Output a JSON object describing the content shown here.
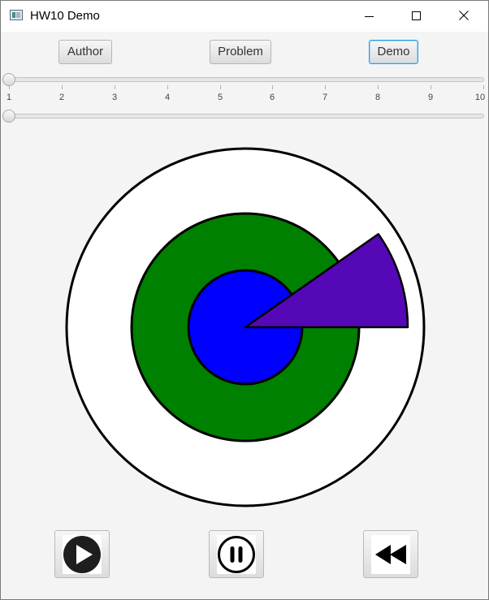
{
  "window": {
    "title": "HW10 Demo",
    "icon": "app-window-icon"
  },
  "toolbar": {
    "author_label": "Author",
    "problem_label": "Problem",
    "demo_label": "Demo",
    "focused": "Demo"
  },
  "sliders": {
    "top": {
      "min": 1,
      "max": 10,
      "value": 1,
      "ticks": [
        "1",
        "2",
        "3",
        "4",
        "5",
        "6",
        "7",
        "8",
        "9",
        "10"
      ]
    },
    "bottom": {
      "value": 0
    }
  },
  "drawing": {
    "colors": {
      "outer_ring": "#ffffff",
      "middle_ring": "#008000",
      "inner_circle": "#0000ff",
      "wedge": "#5508b5",
      "stroke": "#000000"
    },
    "wedge_start_angle_deg": 0,
    "wedge_sweep_deg": 35
  },
  "playback": {
    "play_icon": "play-icon",
    "pause_icon": "pause-icon",
    "rewind_icon": "rewind-icon"
  }
}
